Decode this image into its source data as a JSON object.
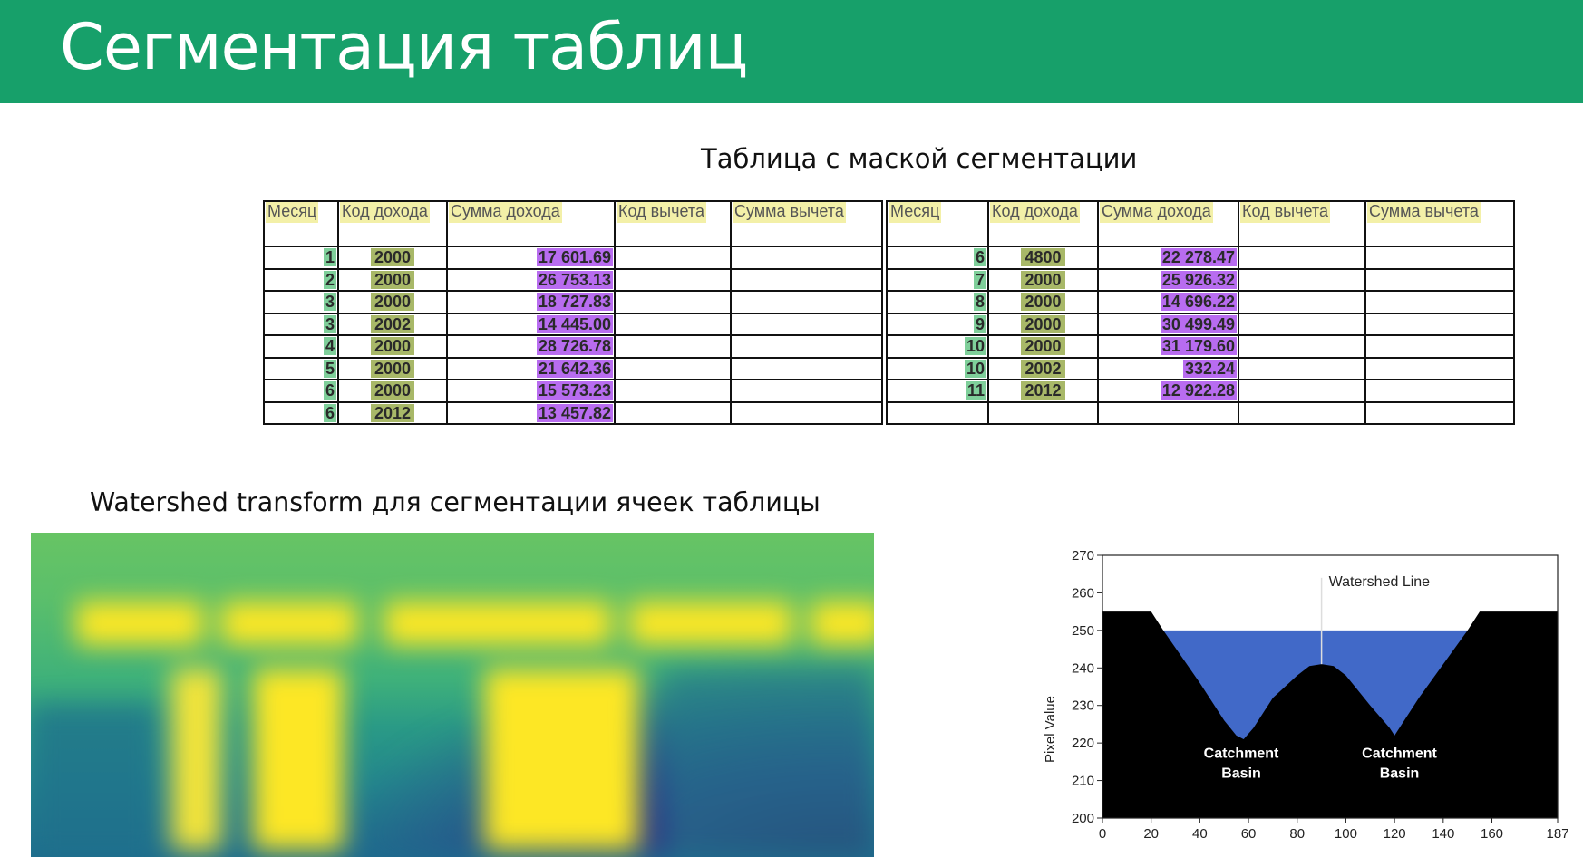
{
  "header": {
    "title": "Сегментация таблиц",
    "background": "#17a06a"
  },
  "table_section": {
    "title": "Таблица с маской сегментации",
    "columns": [
      "Месяц",
      "Код дохода",
      "Сумма дохода",
      "Код вычета",
      "Сумма вычета"
    ],
    "left_rows": [
      {
        "month": "1",
        "code": "2000",
        "sum": "17 601.69"
      },
      {
        "month": "2",
        "code": "2000",
        "sum": "26 753.13"
      },
      {
        "month": "3",
        "code": "2000",
        "sum": "18 727.83"
      },
      {
        "month": "3",
        "code": "2002",
        "sum": "14 445.00"
      },
      {
        "month": "4",
        "code": "2000",
        "sum": "28 726.78"
      },
      {
        "month": "5",
        "code": "2000",
        "sum": "21 642.36"
      },
      {
        "month": "6",
        "code": "2000",
        "sum": "15 573.23"
      },
      {
        "month": "6",
        "code": "2012",
        "sum": "13 457.82"
      }
    ],
    "right_rows": [
      {
        "month": "6",
        "code": "4800",
        "sum": "22 278.47"
      },
      {
        "month": "7",
        "code": "2000",
        "sum": "25 926.32"
      },
      {
        "month": "8",
        "code": "2000",
        "sum": "14 696.22"
      },
      {
        "month": "9",
        "code": "2000",
        "sum": "30 499.49"
      },
      {
        "month": "10",
        "code": "2000",
        "sum": "31 179.60"
      },
      {
        "month": "10",
        "code": "2002",
        "sum": "332.24"
      },
      {
        "month": "11",
        "code": "2012",
        "sum": "12 922.28"
      },
      {
        "month": "",
        "code": "",
        "sum": ""
      }
    ],
    "mask_colors": {
      "header": "#f3f0a8",
      "month": "#7fcf9a",
      "code": "#a8b868",
      "sum": "#b86cf0"
    }
  },
  "watershed_section": {
    "title": "Watershed transform для сегментации ячеек таблицы",
    "heatmap_colors": {
      "high": "#fde725",
      "mid": "#3fb17a",
      "low": "#2b1d6b"
    }
  },
  "chart_data": {
    "type": "area",
    "annotation": "Watershed Line",
    "basin_labels": [
      "Catchment Basin",
      "Catchment Basin"
    ],
    "ylabel": "Pixel Value",
    "xlabel": "",
    "xlim": [
      0,
      187
    ],
    "ylim": [
      200,
      270
    ],
    "x_ticks": [
      0,
      20,
      40,
      60,
      80,
      100,
      120,
      140,
      160,
      187
    ],
    "y_ticks": [
      200,
      210,
      220,
      230,
      240,
      250,
      260,
      270
    ],
    "water_level": 250,
    "watershed_x": 90,
    "profile": {
      "x": [
        0,
        20,
        25,
        40,
        50,
        55,
        58,
        62,
        70,
        80,
        85,
        90,
        95,
        100,
        110,
        118,
        120,
        123,
        130,
        140,
        150,
        155,
        160,
        187
      ],
      "y": [
        255,
        255,
        250,
        236,
        226,
        222,
        221,
        224,
        232,
        238,
        240.5,
        241,
        240.5,
        238,
        230,
        224,
        222,
        225,
        232,
        241,
        250,
        255,
        255,
        255
      ]
    },
    "colors": {
      "terrain": "#000000",
      "water": "#4169c8"
    }
  }
}
